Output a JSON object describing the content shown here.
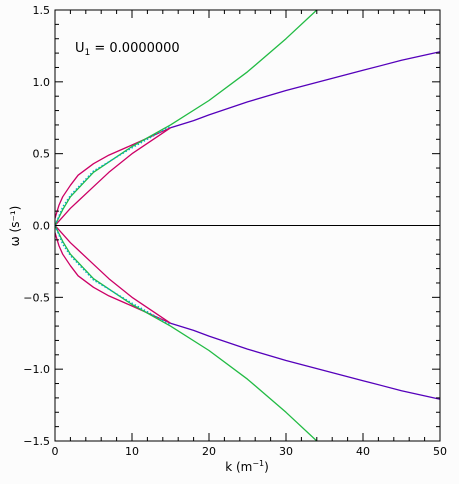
{
  "chart_data": {
    "type": "line",
    "annotation": "U",
    "annotation_sub": "1",
    "annotation_value": " = 0.0000000",
    "xlabel_main": "k (m",
    "xlabel_sup": "−1",
    "xlabel_tail": ")",
    "ylabel": "ω (s⁻¹)",
    "xlim": [
      0,
      50
    ],
    "ylim": [
      -1.5,
      1.5
    ],
    "x_ticks": [
      0,
      10,
      20,
      30,
      40,
      50
    ],
    "x_tick_labels": [
      "0",
      "10",
      "20",
      "30",
      "40",
      "50"
    ],
    "y_ticks": [
      -1.5,
      -1.0,
      -0.5,
      0.0,
      0.5,
      1.0,
      1.5
    ],
    "y_tick_labels": [
      "−1.5",
      "−1.0",
      "−0.5",
      "0.0",
      "0.5",
      "1.0",
      "1.5"
    ],
    "grid": false,
    "colors": {
      "magenta": "#cc0066",
      "purple": "#5500bb",
      "green": "#22bb44",
      "cyan": "#00aacc",
      "black": "#000000"
    },
    "series": [
      {
        "color": "magenta",
        "x": [
          0,
          0.5,
          1,
          2,
          3,
          5,
          7,
          10,
          15
        ],
        "y": [
          0.05,
          0.14,
          0.2,
          0.28,
          0.35,
          0.43,
          0.49,
          0.56,
          0.68
        ]
      },
      {
        "color": "magenta",
        "x": [
          0,
          0.5,
          1,
          2,
          3,
          5,
          7,
          10,
          15
        ],
        "y": [
          0.0,
          0.03,
          0.06,
          0.12,
          0.17,
          0.27,
          0.37,
          0.5,
          0.68
        ]
      },
      {
        "color": "magenta",
        "x": [
          0,
          0.5,
          1,
          2,
          3,
          5,
          7,
          10,
          15
        ],
        "y": [
          -0.05,
          -0.14,
          -0.2,
          -0.28,
          -0.35,
          -0.43,
          -0.49,
          -0.56,
          -0.68
        ]
      },
      {
        "color": "magenta",
        "x": [
          0,
          0.5,
          1,
          2,
          3,
          5,
          7,
          10,
          15
        ],
        "y": [
          0.0,
          -0.03,
          -0.06,
          -0.12,
          -0.17,
          -0.27,
          -0.37,
          -0.5,
          -0.68
        ]
      },
      {
        "color": "purple",
        "x": [
          15,
          18,
          20,
          25,
          30,
          35,
          40,
          45,
          50
        ],
        "y": [
          0.68,
          0.73,
          0.77,
          0.86,
          0.94,
          1.01,
          1.08,
          1.15,
          1.21
        ]
      },
      {
        "color": "purple",
        "x": [
          15,
          18,
          20,
          25,
          30,
          35,
          40,
          45,
          50
        ],
        "y": [
          -0.68,
          -0.73,
          -0.77,
          -0.86,
          -0.94,
          -1.01,
          -1.08,
          -1.15,
          -1.21
        ]
      },
      {
        "color": "green",
        "x": [
          0,
          1,
          2,
          5,
          10,
          15,
          20,
          25,
          30,
          34
        ],
        "y": [
          0.0,
          0.11,
          0.2,
          0.37,
          0.55,
          0.7,
          0.87,
          1.07,
          1.3,
          1.5
        ]
      },
      {
        "color": "green",
        "x": [
          0,
          1,
          2,
          5,
          10,
          15,
          20,
          25,
          30,
          34
        ],
        "y": [
          0.0,
          -0.11,
          -0.2,
          -0.37,
          -0.55,
          -0.7,
          -0.87,
          -1.07,
          -1.3,
          -1.5
        ]
      },
      {
        "color": "cyan",
        "x": [
          0,
          1,
          2,
          5,
          10,
          15
        ],
        "y": [
          0.0,
          0.13,
          0.21,
          0.38,
          0.54,
          0.69
        ]
      },
      {
        "color": "cyan",
        "x": [
          0,
          1,
          2,
          5,
          10,
          15
        ],
        "y": [
          0.0,
          -0.13,
          -0.21,
          -0.38,
          -0.54,
          -0.69
        ]
      },
      {
        "color": "black",
        "x": [
          0,
          50
        ],
        "y": [
          0.0,
          0.0
        ]
      }
    ]
  }
}
